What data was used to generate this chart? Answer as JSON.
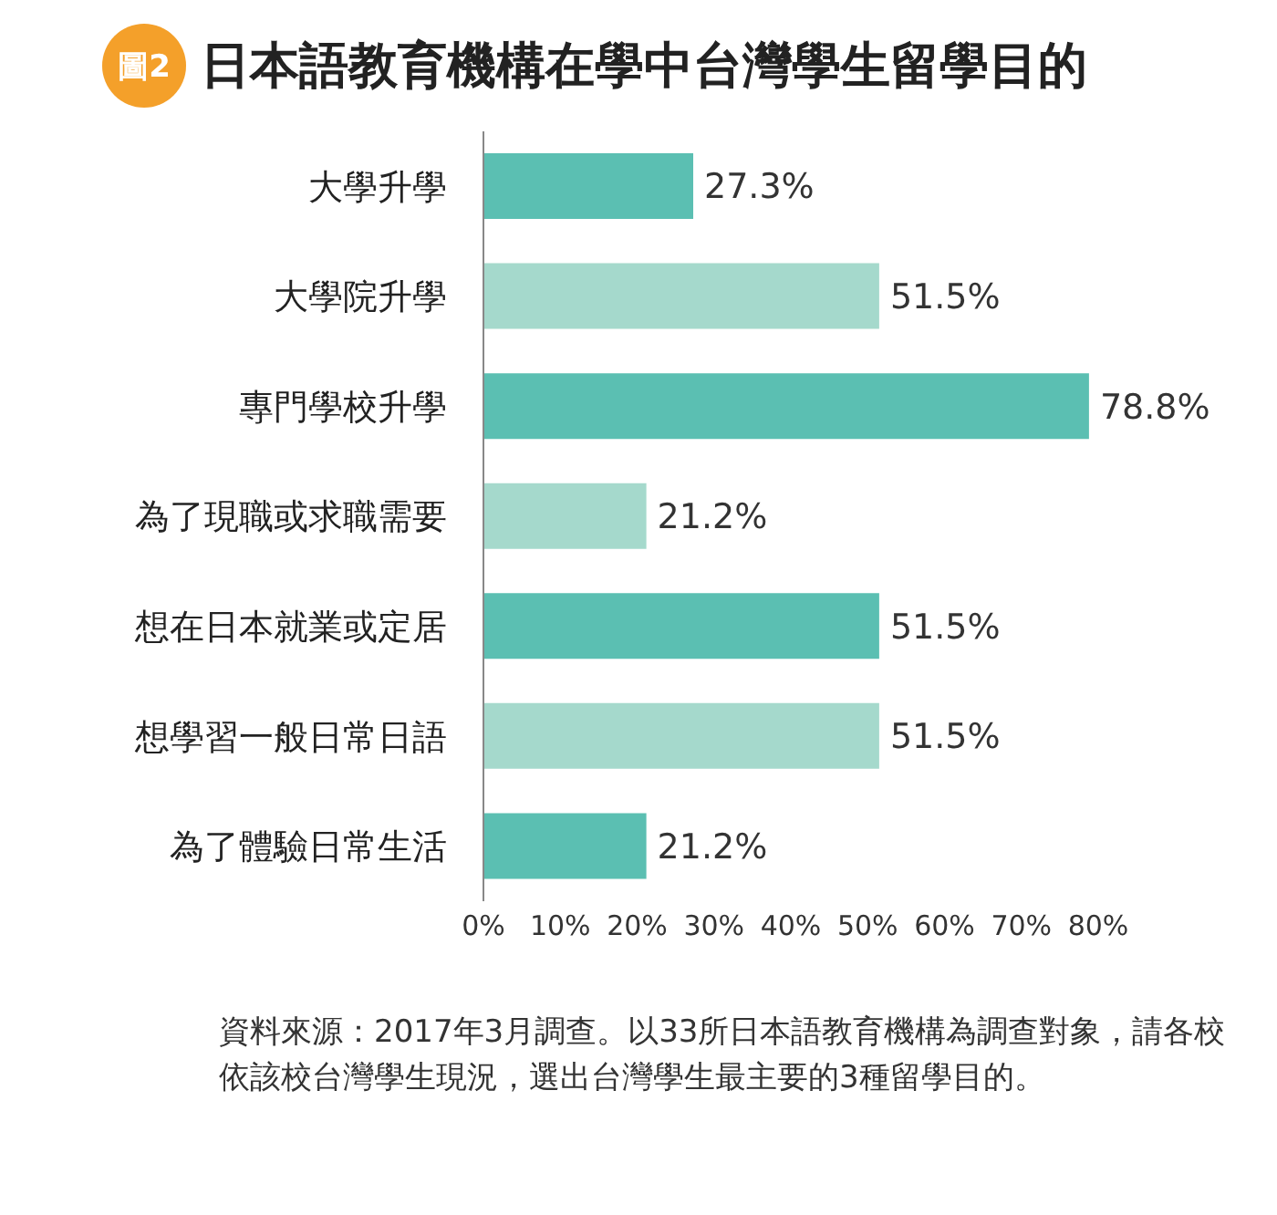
{
  "chart_data": {
    "type": "bar",
    "orientation": "horizontal",
    "title": "日本語教育機構在學中台灣學生留學目的",
    "categories": [
      "大學升學",
      "大學院升學",
      "專門學校升學",
      "為了現職或求職需要",
      "想在日本就業或定居",
      "想學習一般日常日語",
      "為了體驗日常生活"
    ],
    "values": [
      27.3,
      51.5,
      78.8,
      21.2,
      51.5,
      51.5,
      21.2
    ],
    "colors": [
      "#5bbfb2",
      "#a5d9cc",
      "#5bbfb2",
      "#a5d9cc",
      "#5bbfb2",
      "#a5d9cc",
      "#5bbfb2"
    ],
    "value_labels": [
      "27.3%",
      "51.5%",
      "78.8%",
      "21.2%",
      "51.5%",
      "51.5%",
      "21.2%"
    ],
    "xlim": [
      0,
      80
    ],
    "xticks": [
      {
        "value": 0,
        "label": "0%"
      },
      {
        "value": 10,
        "label": "10%"
      },
      {
        "value": 20,
        "label": "20%"
      },
      {
        "value": 30,
        "label": "30%"
      },
      {
        "value": 40,
        "label": "40%"
      },
      {
        "value": 50,
        "label": "50%"
      },
      {
        "value": 60,
        "label": "60%"
      },
      {
        "value": 70,
        "label": "70%"
      },
      {
        "value": 80,
        "label": "80%"
      }
    ],
    "grid": false,
    "legend": false,
    "annotations": [
      "圖2",
      "資料來源：2017年3月調查。以33所日本語教育機構為調查對象，請各校依該校台灣學生現況，選出台灣學生最主要的3種留學目的。"
    ]
  }
}
